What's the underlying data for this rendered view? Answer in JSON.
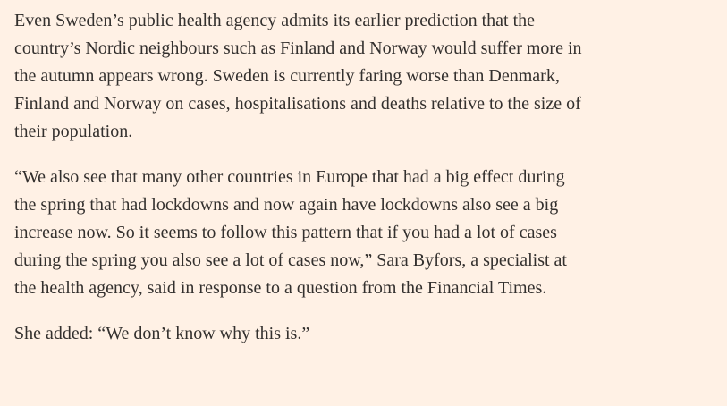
{
  "article": {
    "paragraphs": [
      {
        "lines": [
          "Even Sweden’s public health agency admits its earlier prediction that the",
          "country’s Nordic neighbours such as Finland and Norway would suffer more in",
          "the autumn appears wrong. Sweden is currently faring worse than Denmark,",
          "Finland and Norway on cases, hospitalisations and deaths relative to the size of",
          "their population."
        ]
      },
      {
        "lines": [
          "“We also see that many other countries in Europe that had a big effect during",
          "the spring that had lockdowns and now again have lockdowns also see a big",
          "increase now. So it seems to follow this pattern that if you had a lot of cases",
          "during the spring you also see a lot of cases now,” Sara Byfors, a specialist at",
          "the health agency, said in response to a question from the Financial Times."
        ]
      },
      {
        "lines": [
          "She added: “We don’t know why this is.”"
        ]
      }
    ]
  },
  "colors": {
    "background": "#fff1e5",
    "text": "#33302e"
  }
}
